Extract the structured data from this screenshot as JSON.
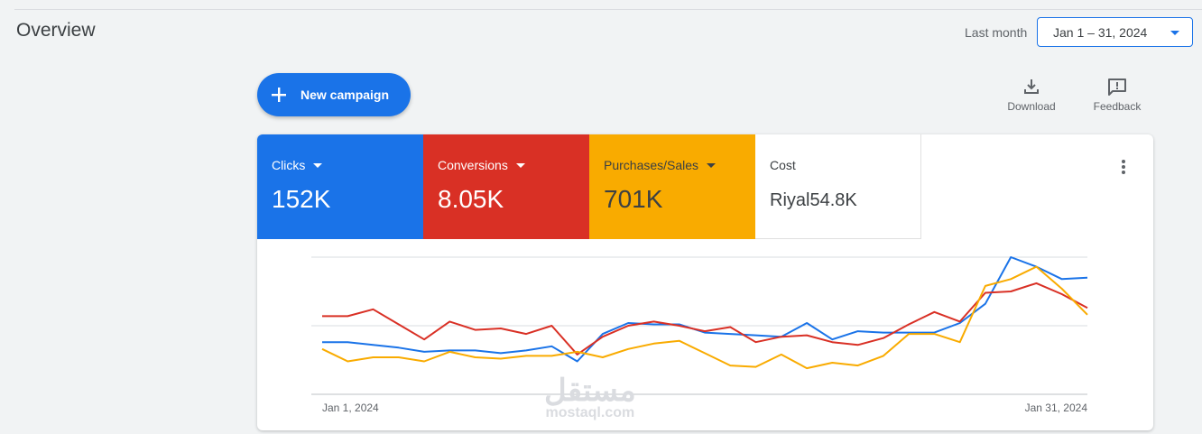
{
  "header": {
    "title": "Overview",
    "range_label": "Last month",
    "date_range": "Jan 1 – 31, 2024"
  },
  "actions": {
    "new_campaign": "New campaign",
    "download": "Download",
    "feedback": "Feedback"
  },
  "metrics": [
    {
      "label": "Clicks",
      "value": "152K",
      "color": "#1a73e8"
    },
    {
      "label": "Conversions",
      "value": "8.05K",
      "color": "#d93025"
    },
    {
      "label": "Purchases/Sales",
      "value": "701K",
      "color": "#f9ab00"
    },
    {
      "label": "Cost",
      "value": "Riyal54.8K",
      "color": "#ffffff"
    }
  ],
  "watermark": {
    "arabic": "مستقل",
    "latin": "mostaql.com"
  },
  "chart_data": {
    "type": "line",
    "x_start_label": "Jan 1, 2024",
    "x_end_label": "Jan 31, 2024",
    "x": [
      1,
      2,
      3,
      4,
      5,
      6,
      7,
      8,
      9,
      10,
      11,
      12,
      13,
      14,
      15,
      16,
      17,
      18,
      19,
      20,
      21,
      22,
      23,
      24,
      25,
      26,
      27,
      28,
      29,
      30,
      31
    ],
    "ylim": [
      0,
      100
    ],
    "grid": true,
    "series": [
      {
        "color": "#1a73e8",
        "values": [
          38,
          38,
          36,
          34,
          31,
          32,
          32,
          30,
          32,
          35,
          24,
          44,
          52,
          51,
          51,
          45,
          44,
          43,
          42,
          52,
          40,
          46,
          45,
          45,
          45,
          52,
          66,
          100,
          93,
          84,
          85
        ]
      },
      {
        "color": "#d93025",
        "values": [
          57,
          57,
          62,
          51,
          40,
          53,
          47,
          48,
          44,
          50,
          29,
          42,
          50,
          53,
          50,
          46,
          49,
          38,
          42,
          43,
          38,
          36,
          41,
          51,
          60,
          53,
          74,
          75,
          81,
          73,
          63
        ]
      },
      {
        "color": "#f9ab00",
        "values": [
          33,
          24,
          27,
          27,
          24,
          31,
          27,
          26,
          28,
          28,
          31,
          27,
          33,
          37,
          39,
          30,
          21,
          20,
          29,
          19,
          23,
          21,
          28,
          44,
          44,
          38,
          79,
          84,
          93,
          77,
          58
        ]
      }
    ]
  }
}
